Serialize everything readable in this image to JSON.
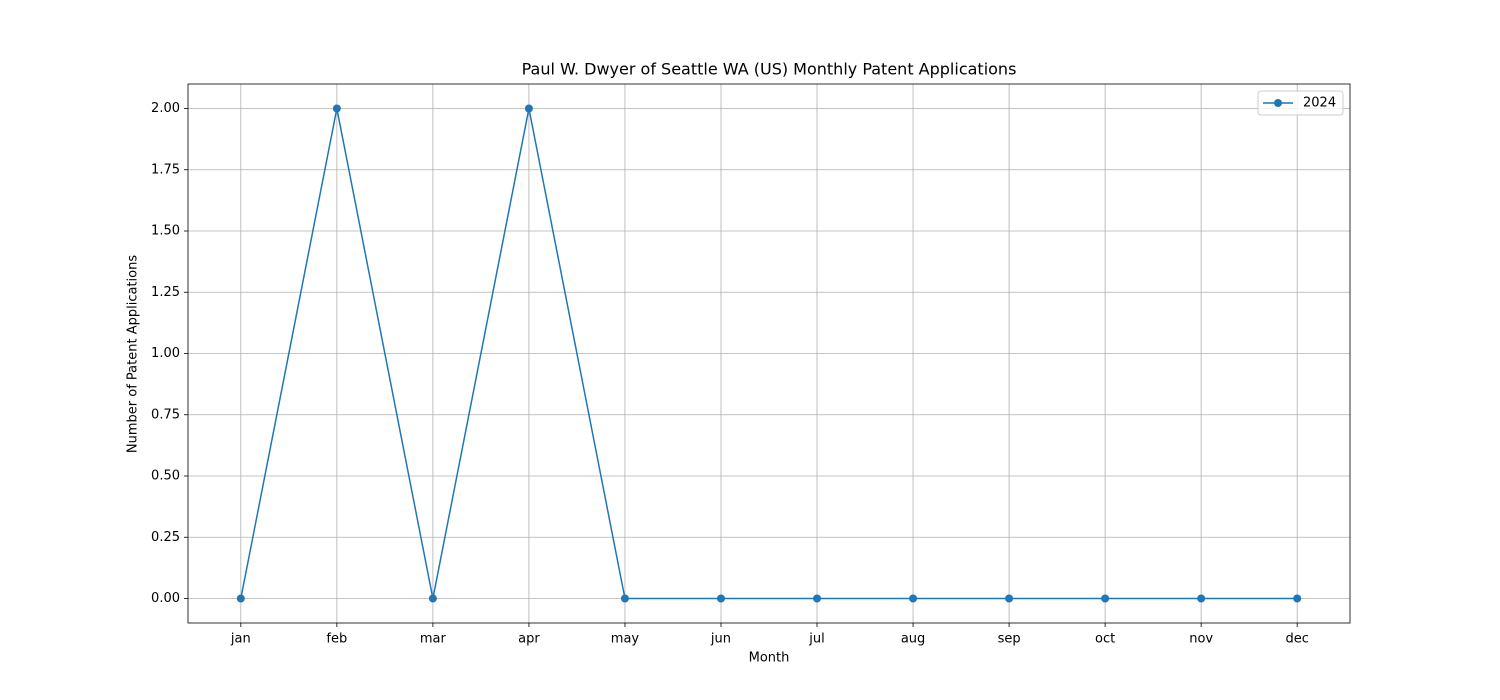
{
  "chart_data": {
    "type": "line",
    "title": "Paul W. Dwyer of Seattle WA (US) Monthly Patent Applications",
    "xlabel": "Month",
    "ylabel": "Number of Patent Applications",
    "categories": [
      "jan",
      "feb",
      "mar",
      "apr",
      "may",
      "jun",
      "jul",
      "aug",
      "sep",
      "oct",
      "nov",
      "dec"
    ],
    "series": [
      {
        "name": "2024",
        "color": "#1f77b4",
        "values": [
          0,
          2,
          0,
          2,
          0,
          0,
          0,
          0,
          0,
          0,
          0,
          0
        ]
      }
    ],
    "ylim": [
      -0.1,
      2.1
    ],
    "yticks": [
      {
        "value": 0,
        "label": "0.00"
      },
      {
        "value": 0.25,
        "label": "0.25"
      },
      {
        "value": 0.5,
        "label": "0.50"
      },
      {
        "value": 0.75,
        "label": "0.75"
      },
      {
        "value": 1,
        "label": "1.00"
      },
      {
        "value": 1.25,
        "label": "1.25"
      },
      {
        "value": 1.5,
        "label": "1.50"
      },
      {
        "value": 1.75,
        "label": "1.75"
      },
      {
        "value": 2,
        "label": "2.00"
      }
    ],
    "grid": true,
    "legend": "upper right"
  }
}
